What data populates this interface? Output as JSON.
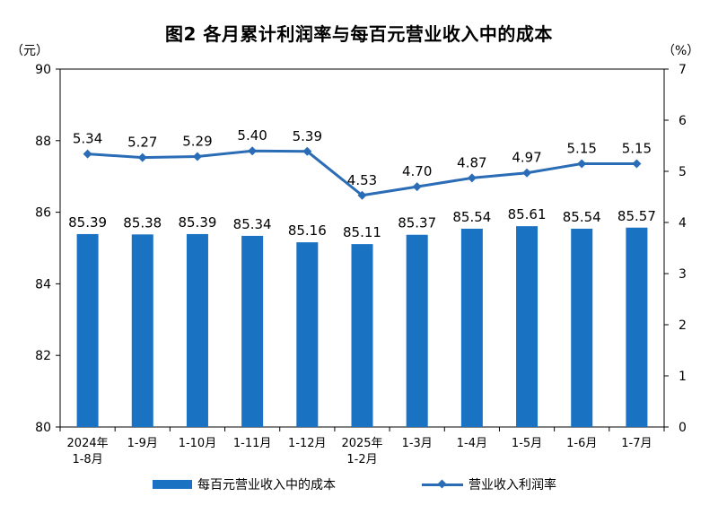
{
  "title": "图2  各月累计利润率与每百元营业收入中的成本",
  "unit_left": "（元）",
  "unit_right": "（%）",
  "colors": {
    "bar": "#1a72c3",
    "line": "#2a6cb5",
    "axis": "#000000"
  },
  "legend": {
    "bar_label": "每百元营业收入中的成本",
    "line_label": "营业收入利润率"
  },
  "chart_data": {
    "type": "bar",
    "categories": [
      [
        "2024年",
        "1-8月"
      ],
      [
        "1-9月"
      ],
      [
        "1-10月"
      ],
      [
        "1-11月"
      ],
      [
        "1-12月"
      ],
      [
        "2025年",
        "1-2月"
      ],
      [
        "1-3月"
      ],
      [
        "1-4月"
      ],
      [
        "1-5月"
      ],
      [
        "1-6月"
      ],
      [
        "1-7月"
      ]
    ],
    "series": [
      {
        "name": "每百元营业收入中的成本",
        "type": "bar",
        "axis": "left",
        "values": [
          85.39,
          85.38,
          85.39,
          85.34,
          85.16,
          85.11,
          85.37,
          85.54,
          85.61,
          85.54,
          85.57
        ],
        "labels": [
          "85.39",
          "85.38",
          "85.39",
          "85.34",
          "85.16",
          "85.11",
          "85.37",
          "85.54",
          "85.61",
          "85.54",
          "85.57"
        ]
      },
      {
        "name": "营业收入利润率",
        "type": "line",
        "axis": "right",
        "marker": "diamond",
        "values": [
          5.34,
          5.27,
          5.29,
          5.4,
          5.39,
          4.53,
          4.7,
          4.87,
          4.97,
          5.15,
          5.15
        ],
        "labels": [
          "5.34",
          "5.27",
          "5.29",
          "5.40",
          "5.39",
          "4.53",
          "4.70",
          "4.87",
          "4.97",
          "5.15",
          "5.15"
        ]
      }
    ],
    "y_left": {
      "min": 80,
      "max": 90,
      "ticks": [
        "80",
        "82",
        "84",
        "86",
        "88",
        "90"
      ]
    },
    "y_right": {
      "min": 0,
      "max": 7,
      "ticks": [
        "0",
        "1",
        "2",
        "3",
        "4",
        "5",
        "6",
        "7"
      ]
    },
    "grid": false,
    "legend_position": "bottom"
  }
}
